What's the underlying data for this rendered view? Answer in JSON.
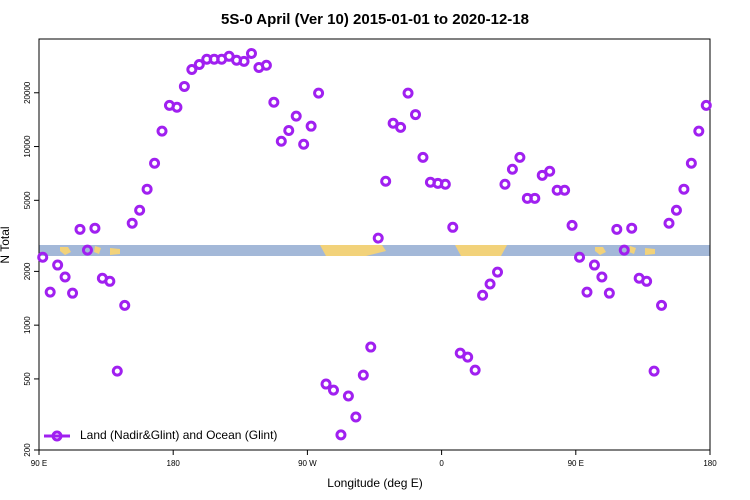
{
  "chart_data": {
    "type": "scatter",
    "title": "5S-0 April (Ver 10)   2015-01-01 to 2020-12-18",
    "xlabel": "Longitude (deg E)",
    "ylabel": "N Total",
    "log_y": true,
    "legend": "bottom-left",
    "xlim": [
      90,
      540
    ],
    "xticks": [
      {
        "value": 90,
        "label": "90 E"
      },
      180,
      {
        "value": 270,
        "label": "90 W"
      },
      {
        "value": 360,
        "label": "0"
      },
      {
        "value": 450,
        "label": "90 E"
      },
      {
        "value": 540,
        "label": "180"
      }
    ],
    "ylim": [
      200,
      40000
    ],
    "yticks": [
      200,
      500,
      1000,
      2000,
      5000,
      10000,
      20000
    ],
    "series": [
      {
        "name": "Land (Nadir&Glint) and Ocean (Glint)",
        "color": "#a020f0",
        "x": [
          92.5,
          97.5,
          102.5,
          107.5,
          112.5,
          117.5,
          122.5,
          127.5,
          132.5,
          137.5,
          142.5,
          147.5,
          152.5,
          157.5,
          162.5,
          167.5,
          172.5,
          177.5,
          182.5,
          187.5,
          192.5,
          197.5,
          202.5,
          207.5,
          212.5,
          217.5,
          222.5,
          227.5,
          232.5,
          237.5,
          242.5,
          247.5,
          252.5,
          257.5,
          262.5,
          267.5,
          272.5,
          277.5,
          282.5,
          287.5,
          292.5,
          297.5,
          302.5,
          307.5,
          312.5,
          317.5,
          322.5,
          327.5,
          332.5,
          337.5,
          342.5,
          347.5,
          352.5,
          357.5,
          362.5,
          367.5,
          372.5,
          377.5,
          382.5,
          387.5,
          392.5,
          397.5,
          402.5,
          407.5,
          412.5,
          417.5,
          422.5,
          427.5,
          432.5,
          437.5,
          442.5,
          447.5,
          452.5,
          457.5,
          462.5,
          467.5,
          472.5,
          477.5,
          482.5,
          487.5,
          492.5,
          497.5,
          502.5,
          507.5,
          512.5,
          517.5,
          522.5,
          527.5,
          532.5,
          537.5
        ],
        "values": [
          2400,
          1530,
          2170,
          1860,
          1510,
          3440,
          2630,
          3490,
          1830,
          1760,
          553,
          1290,
          3720,
          4400,
          5770,
          8060,
          12200,
          17000,
          16600,
          21700,
          27000,
          28800,
          30800,
          30800,
          30800,
          32000,
          30400,
          30000,
          33200,
          27700,
          28500,
          17700,
          10700,
          12300,
          14800,
          10300,
          13000,
          19900,
          468,
          433,
          243,
          401,
          306,
          525,
          754,
          3070,
          6390,
          13500,
          12800,
          19900,
          15100,
          8700,
          6310,
          6220,
          6150,
          3530,
          697,
          662,
          560,
          1470,
          1700,
          1980,
          6150,
          7460,
          8700,
          5130,
          5130,
          6900,
          7270,
          5690,
          5690,
          3620,
          2400,
          1530,
          2170,
          1860,
          1510,
          3440,
          2630,
          3490,
          1830,
          1760,
          553,
          1290,
          3720,
          4400,
          5770,
          8060,
          12200,
          17000
        ]
      }
    ]
  }
}
